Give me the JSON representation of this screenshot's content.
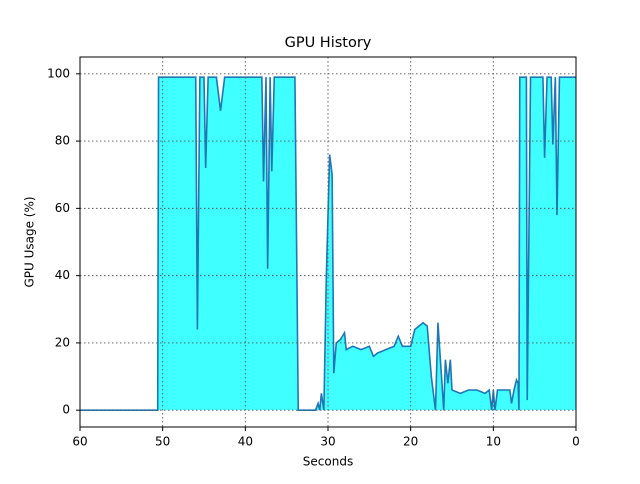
{
  "chart_data": {
    "type": "line",
    "title": "GPU History",
    "xlabel": "Seconds",
    "ylabel": "GPU Usage (%)",
    "x": [
      60,
      55,
      50.6,
      50.5,
      48,
      46,
      45.8,
      45.5,
      45,
      44.8,
      44.5,
      43.5,
      43,
      42.5,
      40,
      38,
      37.8,
      37.5,
      37.3,
      37,
      36.8,
      36.5,
      34,
      33.6,
      31.5,
      31.2,
      31,
      30.8,
      30.5,
      30.2,
      29.8,
      29.5,
      29.3,
      29,
      28.5,
      28,
      27.8,
      27,
      26,
      25,
      24.5,
      24,
      23,
      22,
      21.5,
      21,
      20,
      19.5,
      19,
      18.5,
      18,
      17.5,
      17,
      16.7,
      16,
      15.8,
      15.5,
      15.2,
      15,
      14,
      13,
      12,
      11,
      10.5,
      10.2,
      10,
      9.8,
      9.5,
      8,
      7.8,
      7.5,
      7.2,
      7,
      6.9,
      6.8,
      6,
      5.9,
      5.5,
      4,
      3.8,
      3.5,
      3,
      2.8,
      2.5,
      2.3,
      2,
      0
    ],
    "series": [
      {
        "name": "GPU",
        "color": "#1f77b4",
        "fill": "#00ffff",
        "values": [
          0,
          0,
          0,
          99,
          99,
          99,
          24,
          99,
          99,
          72,
          99,
          99,
          89,
          99,
          99,
          99,
          68,
          99,
          42,
          99,
          71,
          99,
          99,
          0,
          0,
          2,
          0,
          5,
          0,
          40,
          76,
          70,
          11,
          20,
          21,
          23,
          18,
          19,
          18,
          19,
          16,
          17,
          18,
          19,
          22,
          19,
          19,
          24,
          25,
          26,
          25,
          10,
          0,
          26,
          0,
          15,
          8,
          15,
          6,
          5,
          6,
          6,
          5,
          6,
          0,
          6,
          0,
          6,
          6,
          2,
          6,
          9,
          8,
          0,
          99,
          99,
          3,
          99,
          99,
          75,
          99,
          99,
          79,
          99,
          58,
          99,
          99
        ]
      }
    ],
    "xlim": [
      60,
      0
    ],
    "xticks": [
      60,
      50,
      40,
      30,
      20,
      10,
      0
    ],
    "ylim": [
      -5,
      105
    ],
    "yticks": [
      0,
      20,
      40,
      60,
      80,
      100
    ],
    "grid": true
  }
}
